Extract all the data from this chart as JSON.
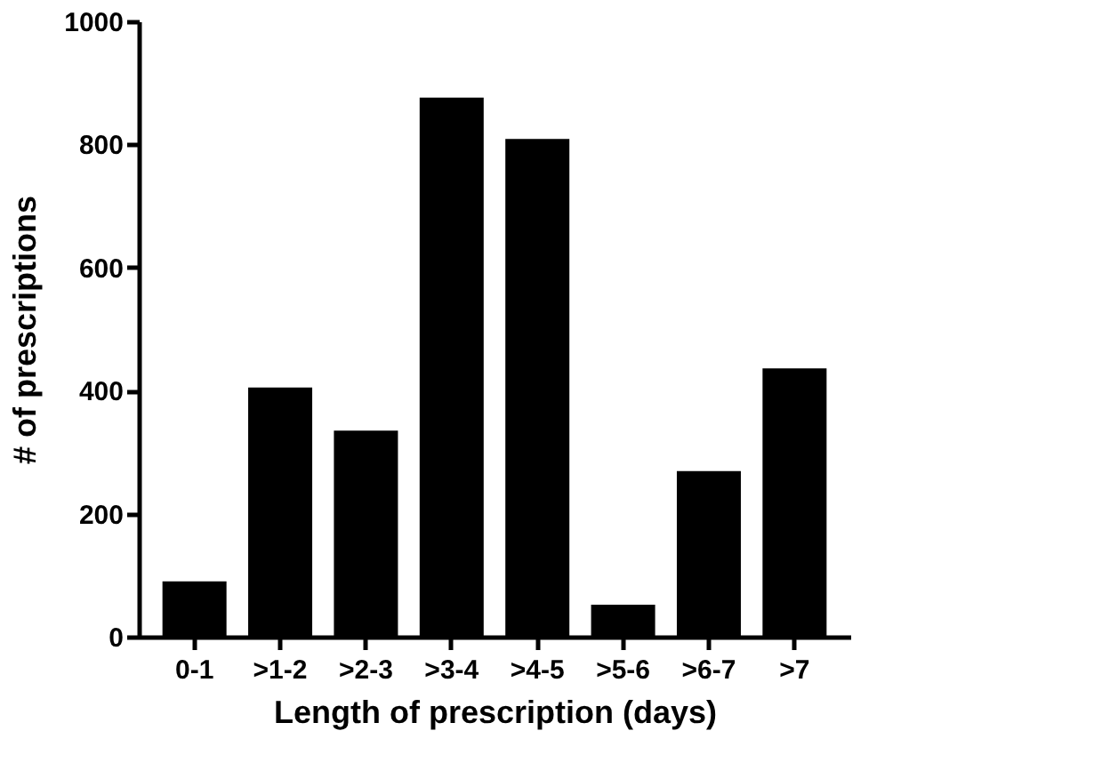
{
  "chart_data": {
    "type": "bar",
    "xlabel": "Length of prescription (days)",
    "ylabel": "# of prescriptions",
    "categories": [
      "0-1",
      ">1-2",
      ">2-3",
      ">3-4",
      ">4-5",
      ">5-6",
      ">6-7",
      ">7"
    ],
    "values": [
      90,
      405,
      335,
      876,
      809,
      52,
      269,
      436
    ],
    "color": "#000000",
    "ylim": [
      0,
      1000
    ],
    "yticks": [
      0,
      200,
      400,
      600,
      800,
      1000
    ],
    "grid": false
  }
}
